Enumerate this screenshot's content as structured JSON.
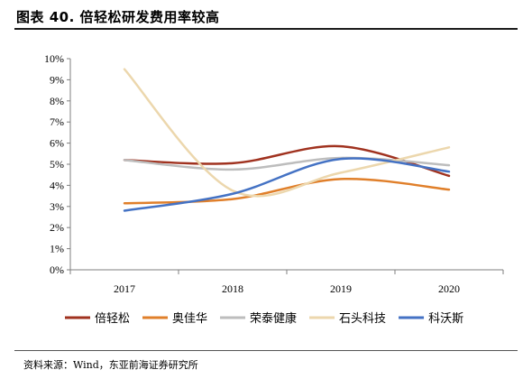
{
  "figure": {
    "title": "图表 40. 倍轻松研发费用率较高",
    "source": "资料来源：Wind，东亚前海证券研究所"
  },
  "chart_data": {
    "type": "line",
    "smooth": true,
    "x": [
      "2017",
      "2018",
      "2019",
      "2020"
    ],
    "ylim": [
      0,
      10
    ],
    "yticks": [
      "0%",
      "1%",
      "2%",
      "3%",
      "4%",
      "5%",
      "6%",
      "7%",
      "8%",
      "9%",
      "10%"
    ],
    "grid": false,
    "legend_position": "bottom",
    "series": [
      {
        "name": "倍轻松",
        "color": "#a0321f",
        "values": [
          5.2,
          5.05,
          5.85,
          4.45
        ]
      },
      {
        "name": "奥佳华",
        "color": "#e07f2a",
        "values": [
          3.15,
          3.35,
          4.3,
          3.8
        ]
      },
      {
        "name": "荣泰健康",
        "color": "#bdbdbd",
        "values": [
          5.2,
          4.75,
          5.3,
          4.95
        ]
      },
      {
        "name": "石头科技",
        "color": "#ecd7ad",
        "values": [
          9.5,
          3.75,
          4.6,
          5.8
        ]
      },
      {
        "name": "科沃斯",
        "color": "#4472c4",
        "values": [
          2.8,
          3.6,
          5.25,
          4.65
        ]
      }
    ]
  }
}
